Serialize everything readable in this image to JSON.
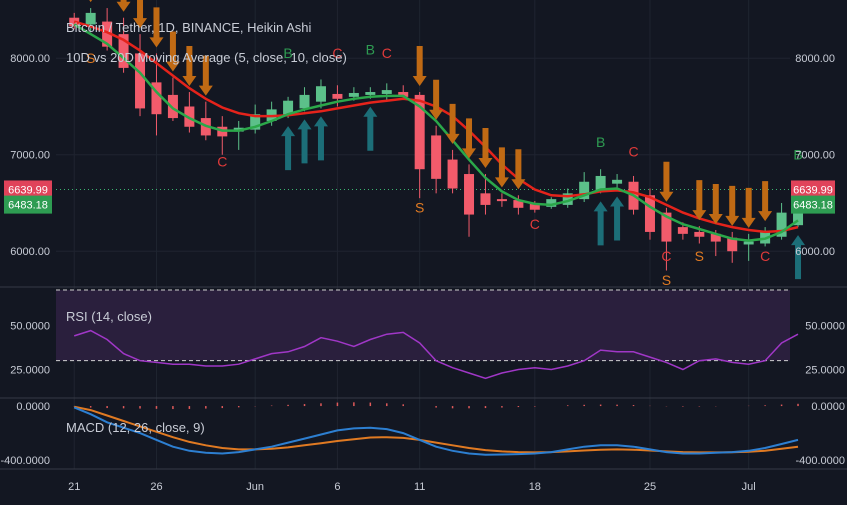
{
  "chart_data": [
    {
      "type": "candlestick",
      "title": "Bitcoin / Tether, 1D, BINANCE, Heikin Ashi",
      "subtitle": "10D vs 20D Moving Average (5, close, 10, close)",
      "y_ticks": [
        "8000.00",
        "7000.00",
        "6000.00"
      ],
      "y_tick_values": [
        8000,
        7000,
        6000
      ],
      "ylim": [
        5650,
        8500
      ],
      "price_line": 6639.99,
      "price_label": "6639.99",
      "ma_label": "6483.18",
      "x_ticks": [
        "21",
        "26",
        "Jun",
        "6",
        "11",
        "18",
        "25",
        "Jul"
      ],
      "x_tick_positions": [
        0,
        5,
        11,
        16,
        21,
        28,
        35,
        41
      ],
      "candles": [
        {
          "o": 8420,
          "h": 8470,
          "l": 8300,
          "c": 8330
        },
        {
          "o": 8350,
          "h": 8520,
          "l": 8270,
          "c": 8470
        },
        {
          "o": 8380,
          "h": 8520,
          "l": 8080,
          "c": 8120
        },
        {
          "o": 8250,
          "h": 8420,
          "l": 7850,
          "c": 7900
        },
        {
          "o": 8050,
          "h": 8250,
          "l": 7400,
          "c": 7480
        },
        {
          "o": 7750,
          "h": 8050,
          "l": 7200,
          "c": 7420
        },
        {
          "o": 7620,
          "h": 7800,
          "l": 7350,
          "c": 7380
        },
        {
          "o": 7500,
          "h": 7650,
          "l": 7230,
          "c": 7290
        },
        {
          "o": 7380,
          "h": 7550,
          "l": 7150,
          "c": 7200
        },
        {
          "o": 7290,
          "h": 7400,
          "l": 7000,
          "c": 7190
        },
        {
          "o": 7240,
          "h": 7350,
          "l": 7050,
          "c": 7280
        },
        {
          "o": 7260,
          "h": 7520,
          "l": 7220,
          "c": 7420
        },
        {
          "o": 7350,
          "h": 7550,
          "l": 7300,
          "c": 7470
        },
        {
          "o": 7410,
          "h": 7600,
          "l": 7380,
          "c": 7560
        },
        {
          "o": 7480,
          "h": 7700,
          "l": 7450,
          "c": 7620
        },
        {
          "o": 7550,
          "h": 7780,
          "l": 7480,
          "c": 7710
        },
        {
          "o": 7630,
          "h": 7720,
          "l": 7500,
          "c": 7580
        },
        {
          "o": 7600,
          "h": 7700,
          "l": 7560,
          "c": 7640
        },
        {
          "o": 7620,
          "h": 7700,
          "l": 7580,
          "c": 7650
        },
        {
          "o": 7630,
          "h": 7740,
          "l": 7560,
          "c": 7670
        },
        {
          "o": 7650,
          "h": 7720,
          "l": 7580,
          "c": 7600
        },
        {
          "o": 7620,
          "h": 7650,
          "l": 6550,
          "c": 6850
        },
        {
          "o": 7200,
          "h": 7300,
          "l": 6600,
          "c": 6750
        },
        {
          "o": 6950,
          "h": 7050,
          "l": 6600,
          "c": 6650
        },
        {
          "o": 6800,
          "h": 6900,
          "l": 6150,
          "c": 6380
        },
        {
          "o": 6600,
          "h": 6800,
          "l": 6380,
          "c": 6480
        },
        {
          "o": 6540,
          "h": 6600,
          "l": 6460,
          "c": 6530
        },
        {
          "o": 6530,
          "h": 6580,
          "l": 6380,
          "c": 6450
        },
        {
          "o": 6490,
          "h": 6520,
          "l": 6400,
          "c": 6430
        },
        {
          "o": 6460,
          "h": 6560,
          "l": 6440,
          "c": 6540
        },
        {
          "o": 6480,
          "h": 6650,
          "l": 6450,
          "c": 6600
        },
        {
          "o": 6540,
          "h": 6820,
          "l": 6510,
          "c": 6720
        },
        {
          "o": 6620,
          "h": 6850,
          "l": 6600,
          "c": 6780
        },
        {
          "o": 6700,
          "h": 6800,
          "l": 6650,
          "c": 6740
        },
        {
          "o": 6720,
          "h": 6780,
          "l": 6380,
          "c": 6430
        },
        {
          "o": 6580,
          "h": 6650,
          "l": 6120,
          "c": 6200
        },
        {
          "o": 6400,
          "h": 6450,
          "l": 5800,
          "c": 6100
        },
        {
          "o": 6250,
          "h": 6300,
          "l": 6120,
          "c": 6180
        },
        {
          "o": 6200,
          "h": 6260,
          "l": 6080,
          "c": 6150
        },
        {
          "o": 6180,
          "h": 6220,
          "l": 5950,
          "c": 6100
        },
        {
          "o": 6140,
          "h": 6200,
          "l": 5880,
          "c": 6000
        },
        {
          "o": 6070,
          "h": 6180,
          "l": 5900,
          "c": 6100
        },
        {
          "o": 6080,
          "h": 6250,
          "l": 6050,
          "c": 6200
        },
        {
          "o": 6150,
          "h": 6500,
          "l": 6120,
          "c": 6400
        },
        {
          "o": 6270,
          "h": 6700,
          "l": 6250,
          "c": 6620
        }
      ],
      "ma_fast": [
        8350,
        8250,
        8150,
        8000,
        7850,
        7650,
        7480,
        7380,
        7300,
        7250,
        7250,
        7290,
        7350,
        7420,
        7470,
        7510,
        7550,
        7580,
        7600,
        7610,
        7610,
        7500,
        7350,
        7150,
        6950,
        6760,
        6620,
        6530,
        6490,
        6480,
        6520,
        6580,
        6640,
        6650,
        6580,
        6460,
        6360,
        6280,
        6230,
        6180,
        6130,
        6110,
        6130,
        6200,
        6320
      ],
      "ma_slow": [
        8380,
        8330,
        8270,
        8190,
        8080,
        7950,
        7820,
        7690,
        7580,
        7490,
        7430,
        7400,
        7400,
        7410,
        7430,
        7450,
        7480,
        7510,
        7540,
        7560,
        7580,
        7560,
        7500,
        7400,
        7250,
        7080,
        6900,
        6750,
        6640,
        6580,
        6570,
        6590,
        6620,
        6630,
        6610,
        6560,
        6480,
        6400,
        6340,
        6290,
        6250,
        6220,
        6200,
        6210,
        6250
      ],
      "signals": [
        {
          "i": 1,
          "text": "S",
          "price": 7950,
          "color": "#e07a22"
        },
        {
          "i": 9,
          "text": "C",
          "price": 6880,
          "color": "#e03a3a"
        },
        {
          "i": 13,
          "text": "B",
          "price": 8000,
          "color": "#2e9c52"
        },
        {
          "i": 16,
          "text": "C",
          "price": 8000,
          "color": "#e03a3a"
        },
        {
          "i": 18,
          "text": "B",
          "price": 8040,
          "color": "#2e9c52"
        },
        {
          "i": 19,
          "text": "C",
          "price": 8000,
          "color": "#e03a3a"
        },
        {
          "i": 21,
          "text": "S",
          "price": 6400,
          "color": "#e07a22"
        },
        {
          "i": 28,
          "text": "C",
          "price": 6230,
          "color": "#e03a3a"
        },
        {
          "i": 32,
          "text": "B",
          "price": 7080,
          "color": "#2e9c52"
        },
        {
          "i": 34,
          "text": "C",
          "price": 6980,
          "color": "#e03a3a"
        },
        {
          "i": 36,
          "text": "C",
          "price": 5900,
          "color": "#e03a3a"
        },
        {
          "i": 36,
          "text": "S",
          "price": 5650,
          "color": "#e07a22"
        },
        {
          "i": 38,
          "text": "S",
          "price": 5900,
          "color": "#e07a22"
        },
        {
          "i": 42,
          "text": "C",
          "price": 5900,
          "color": "#e03a3a"
        },
        {
          "i": 44,
          "text": "B",
          "price": 6950,
          "color": "#2e9c52"
        }
      ],
      "arrows_down": [
        1,
        3,
        4,
        5,
        6,
        7,
        8,
        21,
        22,
        23,
        24,
        25,
        26,
        27,
        36,
        38,
        39,
        40,
        41,
        42
      ],
      "arrows_up": [
        13,
        14,
        15,
        18,
        32,
        33,
        44
      ],
      "colors": {
        "up": "#5cc08a",
        "down": "#f25b6b",
        "ma_fast": "#2ba84a",
        "ma_slow": "#e5231b",
        "arrow_down": "#c06a14",
        "arrow_up": "#1c6e78",
        "price_line": "#3cb371"
      }
    },
    {
      "type": "line",
      "title": "RSI (14, close)",
      "y_ticks": [
        "50.0000",
        "25.0000"
      ],
      "y_tick_values": [
        50,
        25
      ],
      "ylim": [
        10,
        70
      ],
      "upper_band": 70,
      "lower_band": 30,
      "values": [
        44,
        47,
        42,
        34,
        30,
        29,
        28,
        28,
        27,
        27,
        28,
        31,
        34,
        35,
        38,
        43,
        41,
        38,
        42,
        45,
        46,
        40,
        30,
        26,
        23,
        20,
        23,
        25,
        26,
        25,
        27,
        30,
        36,
        35,
        35,
        32,
        29,
        25,
        30,
        31,
        29,
        28,
        30,
        40,
        45
      ],
      "colors": {
        "line": "#a037c7",
        "band_fill": "#2a1f3d",
        "band_line": "#d0d0d0"
      }
    },
    {
      "type": "line",
      "title": "MACD (12, 26, close, 9)",
      "y_ticks": [
        "0.0000",
        "-400.0000"
      ],
      "y_tick_values": [
        0,
        -400
      ],
      "ylim": [
        -450,
        30
      ],
      "macd": [
        -10,
        -60,
        -120,
        -160,
        -200,
        -250,
        -300,
        -330,
        -345,
        -350,
        -340,
        -320,
        -300,
        -270,
        -240,
        -210,
        -180,
        -165,
        -160,
        -170,
        -200,
        -250,
        -300,
        -330,
        -350,
        -360,
        -358,
        -355,
        -350,
        -340,
        -320,
        -300,
        -290,
        -290,
        -300,
        -320,
        -340,
        -350,
        -350,
        -345,
        -340,
        -330,
        -310,
        -280,
        -250
      ],
      "signal": [
        -5,
        -30,
        -70,
        -110,
        -150,
        -190,
        -230,
        -265,
        -290,
        -310,
        -320,
        -320,
        -315,
        -305,
        -290,
        -275,
        -258,
        -245,
        -232,
        -230,
        -235,
        -250,
        -270,
        -290,
        -310,
        -325,
        -335,
        -340,
        -342,
        -340,
        -335,
        -328,
        -322,
        -320,
        -322,
        -328,
        -335,
        -340,
        -342,
        -342,
        -341,
        -338,
        -330,
        -315,
        -300
      ],
      "histogram": [
        -5,
        -30,
        -40,
        -45,
        -50,
        -55,
        -60,
        -58,
        -50,
        -40,
        -25,
        -5,
        10,
        25,
        40,
        55,
        70,
        75,
        70,
        55,
        35,
        0,
        -30,
        -45,
        -45,
        -40,
        -30,
        -20,
        -10,
        0,
        15,
        25,
        30,
        28,
        20,
        5,
        -5,
        -10,
        -8,
        -5,
        0,
        5,
        15,
        30,
        45
      ],
      "colors": {
        "macd": "#2d7fd1",
        "signal": "#e07a22",
        "hist": "#e05a5a"
      }
    }
  ]
}
